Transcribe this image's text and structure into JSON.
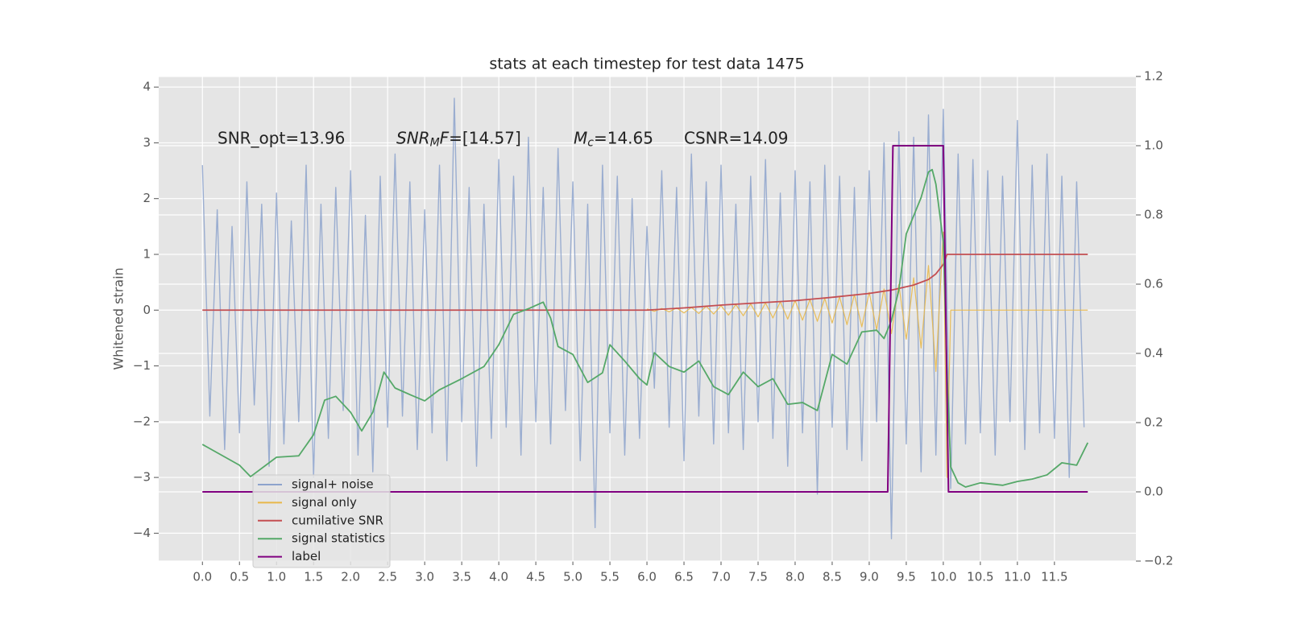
{
  "chart_data": {
    "type": "line",
    "title": "stats at each timestep for test data 1475",
    "ylabel": "Whitened strain",
    "xlim": [
      -0.59,
      12.6
    ],
    "ylim": [
      -4.5,
      4.19
    ],
    "y2lim": [
      -0.2,
      1.2
    ],
    "grid": true,
    "legend": "lower left",
    "xticks": [
      {
        "value": 0,
        "label": "0.0"
      },
      {
        "value": 0.5,
        "label": "0.5"
      },
      {
        "value": 1,
        "label": "1.0"
      },
      {
        "value": 1.5,
        "label": "1.5"
      },
      {
        "value": 2,
        "label": "2.0"
      },
      {
        "value": 2.5,
        "label": "2.5"
      },
      {
        "value": 3,
        "label": "3.0"
      },
      {
        "value": 3.5,
        "label": "3.5"
      },
      {
        "value": 4,
        "label": "4.0"
      },
      {
        "value": 4.5,
        "label": "4.5"
      },
      {
        "value": 5,
        "label": "5.0"
      },
      {
        "value": 5.5,
        "label": "5.5"
      },
      {
        "value": 6,
        "label": "6.0"
      },
      {
        "value": 6.5,
        "label": "6.5"
      },
      {
        "value": 7,
        "label": "7.0"
      },
      {
        "value": 7.5,
        "label": "7.5"
      },
      {
        "value": 8,
        "label": "8.0"
      },
      {
        "value": 8.5,
        "label": "8.5"
      },
      {
        "value": 9,
        "label": "9.0"
      },
      {
        "value": 9.5,
        "label": "9.5"
      },
      {
        "value": 10,
        "label": "10.0"
      },
      {
        "value": 10.5,
        "label": "10.5"
      },
      {
        "value": 11,
        "label": "11.0"
      },
      {
        "value": 11.5,
        "label": "11.5"
      }
    ],
    "yticks": [
      {
        "value": -4,
        "label": "−4"
      },
      {
        "value": -3,
        "label": "−3"
      },
      {
        "value": -2,
        "label": "−2"
      },
      {
        "value": -1,
        "label": "−1"
      },
      0,
      1,
      2,
      3,
      4
    ],
    "y2ticks": [
      {
        "value": -0.2,
        "label": "−0.2"
      },
      {
        "value": 0,
        "label": "0.0"
      },
      {
        "value": 0.2,
        "label": "0.2"
      },
      {
        "value": 0.4,
        "label": "0.4"
      },
      {
        "value": 0.6,
        "label": "0.6"
      },
      {
        "value": 0.8,
        "label": "0.8"
      },
      {
        "value": 1,
        "label": "1.0"
      },
      {
        "value": 1.2,
        "label": "1.2"
      }
    ],
    "annotations": [
      [
        {
          "text": "SNR_opt=13.96",
          "style": "normal"
        }
      ],
      [
        {
          "text": "SNR",
          "style": "italic"
        },
        {
          "text": "M",
          "style": "sub"
        },
        {
          "text": "F",
          "style": "italic"
        },
        {
          "text": "=[14.57]",
          "style": "normal"
        }
      ],
      [
        {
          "text": "M",
          "style": "italic"
        },
        {
          "text": "c",
          "style": "sub"
        },
        {
          "text": "=14.65",
          "style": "normal"
        }
      ],
      [
        {
          "text": "CSNR=14.09",
          "style": "normal"
        }
      ]
    ],
    "series": [
      {
        "name": "signal+ noise",
        "color": "#8da3cc",
        "axis": "y",
        "x": [
          0,
          0.1,
          0.2,
          0.3,
          0.4,
          0.5,
          0.6,
          0.7,
          0.8,
          0.9,
          1,
          1.1,
          1.2,
          1.3,
          1.4,
          1.5,
          1.6,
          1.7,
          1.8,
          1.9,
          2,
          2.1,
          2.2,
          2.3,
          2.4,
          2.5,
          2.6,
          2.7,
          2.8,
          2.9,
          3,
          3.1,
          3.2,
          3.3,
          3.4,
          3.5,
          3.6,
          3.7,
          3.8,
          3.9,
          4,
          4.1,
          4.2,
          4.3,
          4.4,
          4.5,
          4.6,
          4.7,
          4.8,
          4.9,
          5,
          5.1,
          5.2,
          5.3,
          5.4,
          5.5,
          5.6,
          5.7,
          5.8,
          5.9,
          6,
          6.1,
          6.2,
          6.3,
          6.4,
          6.5,
          6.6,
          6.7,
          6.8,
          6.9,
          7,
          7.1,
          7.2,
          7.3,
          7.4,
          7.5,
          7.6,
          7.7,
          7.8,
          7.9,
          8,
          8.1,
          8.2,
          8.3,
          8.4,
          8.5,
          8.6,
          8.7,
          8.8,
          8.9,
          9,
          9.1,
          9.2,
          9.3,
          9.4,
          9.5,
          9.6,
          9.7,
          9.8,
          9.9,
          10,
          10.1,
          10.2,
          10.3,
          10.4,
          10.5,
          10.6,
          10.7,
          10.8,
          10.9,
          11,
          11.1,
          11.2,
          11.3,
          11.4,
          11.5,
          11.6,
          11.7,
          11.8,
          11.9
        ],
        "values": [
          2.6,
          -1.9,
          1.8,
          -2.5,
          1.5,
          -2.2,
          2.3,
          -1.7,
          1.9,
          -2.8,
          2.1,
          -2.4,
          1.6,
          -2.0,
          2.6,
          -3.0,
          1.9,
          -2.3,
          2.2,
          -1.8,
          2.5,
          -2.6,
          1.7,
          -2.9,
          2.4,
          -2.1,
          2.8,
          -1.9,
          2.3,
          -2.5,
          1.8,
          -2.2,
          2.6,
          -2.7,
          3.8,
          -2.0,
          2.2,
          -2.8,
          1.9,
          -2.3,
          2.7,
          -2.1,
          2.4,
          -2.6,
          3.1,
          -2.0,
          2.2,
          -2.4,
          2.9,
          -1.8,
          2.3,
          -2.7,
          1.9,
          -3.9,
          2.6,
          -2.2,
          2.4,
          -2.6,
          2.0,
          -2.3,
          1.5,
          -1.4,
          2.5,
          -2.1,
          2.2,
          -2.7,
          2.8,
          -1.9,
          2.3,
          -2.4,
          2.6,
          -2.2,
          1.9,
          -2.5,
          2.4,
          -2.0,
          2.7,
          -2.3,
          2.1,
          -2.8,
          2.5,
          -2.2,
          2.3,
          -3.3,
          2.6,
          -2.1,
          2.4,
          -2.5,
          2.2,
          -2.7,
          2.5,
          -2.0,
          3.0,
          -4.1,
          3.2,
          -2.4,
          3.1,
          -2.9,
          3.5,
          -2.6,
          3.6,
          -3.2,
          2.8,
          -2.4,
          2.7,
          -2.2,
          2.5,
          -2.6,
          2.4,
          -2.0,
          3.4,
          -2.5,
          2.6,
          -2.2,
          2.8,
          -2.3,
          2.4,
          -3.0,
          2.3,
          -2.1
        ]
      },
      {
        "name": "signal only",
        "color": "#e8b84a",
        "axis": "y",
        "x": [
          6,
          6.1,
          6.2,
          6.3,
          6.4,
          6.5,
          6.6,
          6.7,
          6.8,
          6.9,
          7,
          7.1,
          7.2,
          7.3,
          7.4,
          7.5,
          7.6,
          7.7,
          7.8,
          7.9,
          8,
          8.1,
          8.2,
          8.3,
          8.4,
          8.5,
          8.6,
          8.7,
          8.8,
          8.9,
          9,
          9.1,
          9.2,
          9.3,
          9.4,
          9.5,
          9.6,
          9.7,
          9.8,
          9.9,
          10,
          10.05,
          10.1,
          11.95
        ],
        "values": [
          0.02,
          -0.02,
          0.03,
          -0.03,
          0.04,
          -0.05,
          0.05,
          -0.06,
          0.07,
          -0.07,
          0.08,
          -0.09,
          0.1,
          -0.1,
          0.11,
          -0.12,
          0.13,
          -0.14,
          0.15,
          -0.16,
          0.17,
          -0.18,
          0.19,
          -0.2,
          0.21,
          -0.23,
          0.24,
          -0.26,
          0.28,
          -0.3,
          0.32,
          -0.35,
          0.38,
          -0.42,
          0.46,
          -0.52,
          0.58,
          -0.68,
          0.8,
          -1.1,
          1.4,
          -3.0,
          0,
          0
        ]
      },
      {
        "name": "cumilative SNR",
        "color": "#c44e52",
        "axis": "y",
        "x": [
          0,
          6,
          6.5,
          7,
          7.5,
          8,
          8.5,
          9,
          9.3,
          9.6,
          9.8,
          9.9,
          10,
          10.05,
          11.95
        ],
        "values": [
          0,
          0,
          0.04,
          0.09,
          0.13,
          0.17,
          0.23,
          0.3,
          0.36,
          0.45,
          0.55,
          0.65,
          0.82,
          1.0,
          1.0
        ]
      },
      {
        "name": "signal statistics",
        "color": "#55a868",
        "axis": "y2",
        "x": [
          0,
          0.5,
          0.65,
          1.0,
          1.3,
          1.5,
          1.65,
          1.8,
          2.0,
          2.15,
          2.3,
          2.45,
          2.6,
          2.8,
          3.0,
          3.2,
          3.5,
          3.8,
          4.0,
          4.2,
          4.4,
          4.6,
          4.7,
          4.8,
          5.0,
          5.2,
          5.4,
          5.5,
          5.7,
          5.9,
          6.0,
          6.1,
          6.3,
          6.5,
          6.7,
          6.9,
          7.1,
          7.3,
          7.5,
          7.7,
          7.9,
          8.1,
          8.3,
          8.5,
          8.7,
          8.9,
          9.1,
          9.2,
          9.3,
          9.4,
          9.5,
          9.7,
          9.8,
          9.85,
          9.9,
          10.0,
          10.05,
          10.1,
          10.2,
          10.3,
          10.5,
          10.8,
          11.0,
          11.2,
          11.4,
          11.6,
          11.8,
          11.95
        ],
        "values": [
          0.137,
          0.077,
          0.044,
          0.1,
          0.104,
          0.165,
          0.265,
          0.276,
          0.23,
          0.176,
          0.23,
          0.346,
          0.3,
          0.281,
          0.263,
          0.295,
          0.327,
          0.362,
          0.425,
          0.513,
          0.529,
          0.548,
          0.502,
          0.42,
          0.397,
          0.316,
          0.344,
          0.425,
          0.378,
          0.327,
          0.309,
          0.402,
          0.362,
          0.346,
          0.378,
          0.304,
          0.281,
          0.346,
          0.304,
          0.327,
          0.253,
          0.258,
          0.235,
          0.397,
          0.369,
          0.462,
          0.467,
          0.443,
          0.495,
          0.583,
          0.745,
          0.85,
          0.924,
          0.931,
          0.889,
          0.722,
          0.351,
          0.072,
          0.026,
          0.014,
          0.026,
          0.019,
          0.03,
          0.037,
          0.049,
          0.084,
          0.077,
          0.142
        ]
      },
      {
        "name": "label",
        "color": "#800080",
        "axis": "y2",
        "x": [
          0,
          9.25,
          9.32,
          10.0,
          10.07,
          11.95
        ],
        "values": [
          0,
          0,
          1,
          1,
          0,
          0
        ]
      }
    ]
  }
}
